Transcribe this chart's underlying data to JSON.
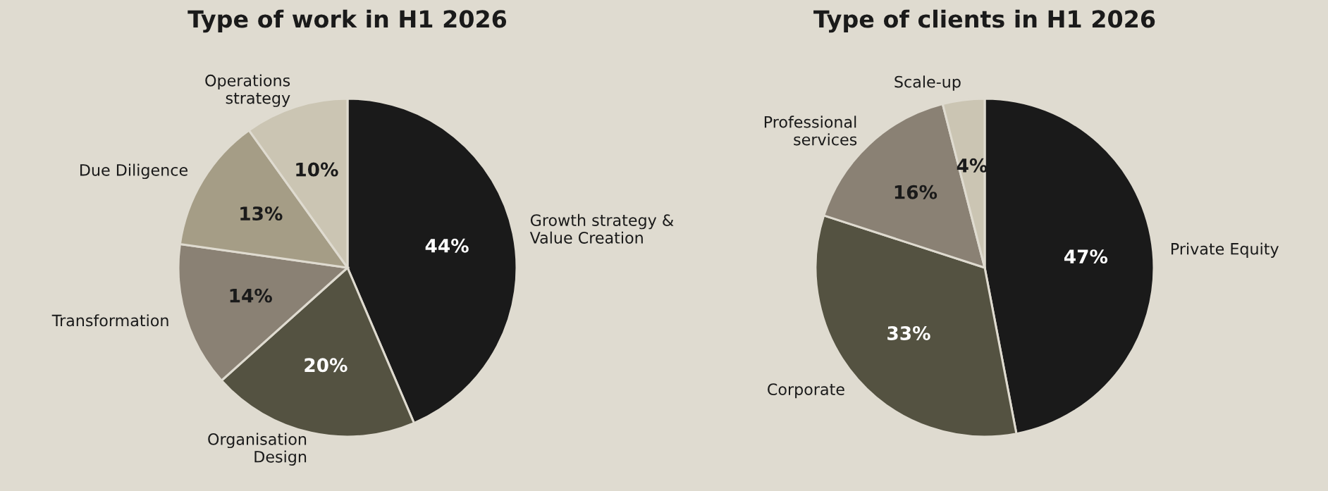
{
  "chart_data": [
    {
      "type": "pie",
      "title": "Type of work in H1 2026",
      "categories": [
        "Growth strategy &\nValue Creation",
        "Organisation\nDesign",
        "Transformation",
        "Due Diligence",
        "Operations\nstrategy"
      ],
      "values": [
        44,
        20,
        14,
        13,
        10
      ],
      "value_labels": [
        "44%",
        "20%",
        "14%",
        "13%",
        "10%"
      ],
      "colors": [
        "#1a1a1a",
        "#545241",
        "#8a8174",
        "#a59d86",
        "#cbc5b3"
      ]
    },
    {
      "type": "pie",
      "title": "Type of clients in H1 2026",
      "categories": [
        "Private Equity",
        "Corporate",
        "Professional\nservices",
        "Scale-up"
      ],
      "values": [
        47,
        33,
        16,
        4
      ],
      "value_labels": [
        "47%",
        "33%",
        "16%",
        "4%"
      ],
      "colors": [
        "#1a1a1a",
        "#545241",
        "#8a8174",
        "#cbc5b3"
      ]
    }
  ]
}
